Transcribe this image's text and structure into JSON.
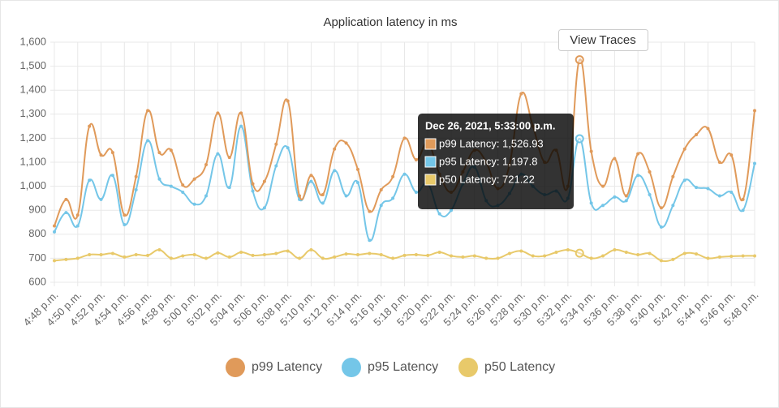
{
  "button": "View Traces",
  "chart_data": {
    "type": "line",
    "title": "Application latency in ms",
    "categories": [
      "4:48 p.m.",
      null,
      "4:50 p.m.",
      null,
      "4:52 p.m.",
      null,
      "4:54 p.m.",
      null,
      "4:56 p.m.",
      null,
      "4:58 p.m.",
      null,
      "5:00 p.m.",
      null,
      "5:02 p.m.",
      null,
      "5:04 p.m.",
      null,
      "5:06 p.m.",
      null,
      "5:08 p.m.",
      null,
      "5:10 p.m.",
      null,
      "5:12 p.m.",
      null,
      "5:14 p.m.",
      null,
      "5:16 p.m.",
      null,
      "5:18 p.m.",
      null,
      "5:20 p.m.",
      null,
      "5:22 p.m.",
      null,
      "5:24 p.m.",
      null,
      "5:26 p.m.",
      null,
      "5:28 p.m.",
      null,
      "5:30 p.m.",
      null,
      "5:32 p.m.",
      null,
      "5:34 p.m.",
      null,
      "5:36 p.m.",
      null,
      "5:38 p.m.",
      null,
      "5:40 p.m.",
      null,
      "5:42 p.m.",
      null,
      "5:44 p.m.",
      null,
      "5:46 p.m.",
      null,
      "5:48 p.m."
    ],
    "series": [
      {
        "name": "p99 Latency",
        "color": "#e09a5a",
        "values": [
          835,
          945,
          880,
          1250,
          1130,
          1140,
          880,
          1040,
          1315,
          1140,
          1150,
          1005,
          1030,
          1090,
          1305,
          1120,
          1305,
          1010,
          1020,
          1175,
          1355,
          960,
          1045,
          965,
          1155,
          1180,
          1070,
          895,
          985,
          1040,
          1200,
          1110,
          1180,
          1050,
          975,
          1060,
          1150,
          1100,
          990,
          1090,
          1385,
          1250,
          1100,
          1150,
          1000,
          1526.93,
          1145,
          1000,
          1115,
          960,
          1135,
          1060,
          910,
          1040,
          1155,
          1215,
          1240,
          1100,
          1130,
          945,
          1315
        ]
      },
      {
        "name": "p95 Latency",
        "color": "#74c6e8",
        "values": [
          810,
          890,
          835,
          1025,
          945,
          1045,
          840,
          985,
          1190,
          1030,
          1000,
          975,
          925,
          960,
          1135,
          995,
          1250,
          980,
          910,
          1085,
          1160,
          945,
          1020,
          930,
          1065,
          960,
          1015,
          775,
          920,
          950,
          1050,
          975,
          1010,
          885,
          900,
          1010,
          1080,
          940,
          920,
          970,
          1050,
          1000,
          965,
          980,
          950,
          1197.8,
          930,
          920,
          955,
          940,
          1045,
          965,
          830,
          920,
          1025,
          995,
          990,
          960,
          975,
          900,
          1095
        ]
      },
      {
        "name": "p50 Latency",
        "color": "#e8c96a",
        "values": [
          690,
          695,
          700,
          715,
          715,
          720,
          705,
          715,
          712,
          735,
          700,
          710,
          715,
          700,
          722,
          705,
          725,
          712,
          715,
          720,
          730,
          700,
          735,
          700,
          705,
          718,
          715,
          720,
          715,
          700,
          712,
          715,
          712,
          725,
          710,
          705,
          710,
          700,
          700,
          720,
          730,
          710,
          710,
          725,
          735,
          721.22,
          700,
          710,
          735,
          725,
          715,
          720,
          690,
          695,
          720,
          718,
          700,
          705,
          708,
          710,
          710
        ]
      }
    ],
    "ylim": [
      600,
      1600
    ],
    "yticks": [
      600,
      700,
      800,
      900,
      {
        "value": 1000,
        "label": "1,000"
      },
      {
        "value": 1100,
        "label": "1,100"
      },
      {
        "value": 1200,
        "label": "1,200"
      },
      {
        "value": 1300,
        "label": "1,300"
      },
      {
        "value": 1400,
        "label": "1,400"
      },
      {
        "value": 1500,
        "label": "1,500"
      },
      {
        "value": 1600,
        "label": "1,600"
      }
    ],
    "grid": true,
    "legend": "bottom",
    "tooltip": {
      "title": "Dec 26, 2021, 5:33:00 p.m.",
      "labels": [
        "p99 Latency: 1,526.93",
        "p95 Latency: 1,197.8",
        "p50 Latency: 721.22"
      ]
    }
  }
}
